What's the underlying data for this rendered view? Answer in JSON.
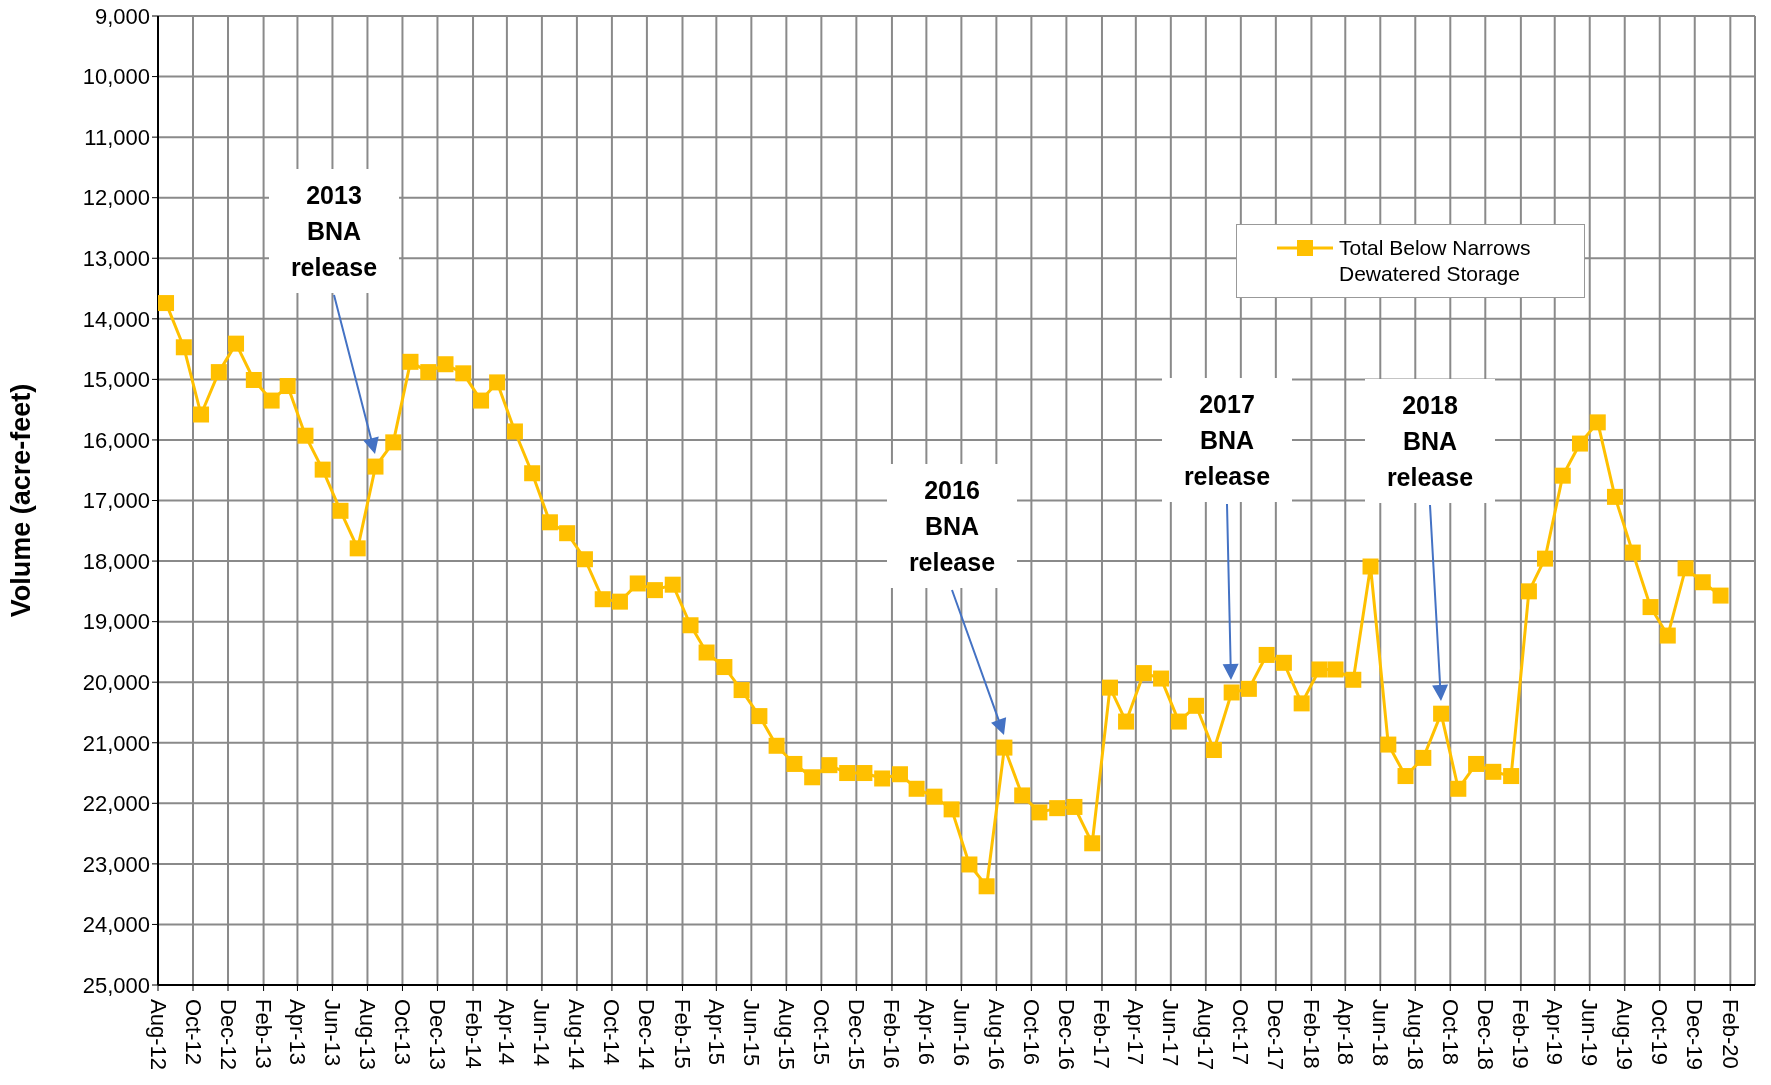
{
  "chart_data": {
    "type": "line",
    "ylabel": "Volume (acre-feet)",
    "x": [
      "2012-08-15",
      "2012-09-15",
      "2012-10-15",
      "2012-11-15",
      "2012-12-15",
      "2013-01-15",
      "2013-02-15",
      "2013-03-15",
      "2013-04-15",
      "2013-05-15",
      "2013-06-15",
      "2013-07-15",
      "2013-08-15",
      "2013-09-15",
      "2013-10-15",
      "2013-11-15",
      "2013-12-15",
      "2014-01-15",
      "2014-02-15",
      "2014-03-15",
      "2014-04-15",
      "2014-05-15",
      "2014-06-15",
      "2014-07-15",
      "2014-08-15",
      "2014-09-15",
      "2014-10-15",
      "2014-11-15",
      "2014-12-15",
      "2015-01-15",
      "2015-02-15",
      "2015-03-15",
      "2015-04-15",
      "2015-05-15",
      "2015-06-15",
      "2015-07-15",
      "2015-08-15",
      "2015-09-15",
      "2015-10-15",
      "2015-11-15",
      "2015-12-15",
      "2016-01-15",
      "2016-02-15",
      "2016-03-15",
      "2016-04-15",
      "2016-05-15",
      "2016-06-15",
      "2016-07-15",
      "2016-08-15",
      "2016-09-15",
      "2016-10-15",
      "2016-11-15",
      "2016-12-15",
      "2017-01-15",
      "2017-02-15",
      "2017-03-15",
      "2017-04-15",
      "2017-05-15",
      "2017-06-15",
      "2017-07-15",
      "2017-08-15",
      "2017-09-15",
      "2017-10-15",
      "2017-11-15",
      "2017-12-15",
      "2018-01-15",
      "2018-02-15",
      "2018-03-15",
      "2018-04-15",
      "2018-05-15",
      "2018-06-15",
      "2018-07-15",
      "2018-08-15",
      "2018-09-15",
      "2018-10-15",
      "2018-11-15",
      "2018-12-15",
      "2019-01-15",
      "2019-02-15",
      "2019-03-15",
      "2019-04-15",
      "2019-05-15",
      "2019-06-15",
      "2019-07-15",
      "2019-08-15",
      "2019-09-15",
      "2019-10-15",
      "2019-11-15",
      "2019-12-15",
      "2020-01-15"
    ],
    "series": [
      {
        "name": "Total Below Narrows Dewatered Storage",
        "color": "#ffc000",
        "values": [
          13740,
          14470,
          15580,
          14880,
          14410,
          15010,
          15350,
          15110,
          15930,
          16490,
          17170,
          17790,
          16440,
          16040,
          14710,
          14880,
          14750,
          14900,
          15350,
          15050,
          15860,
          16550,
          17360,
          17540,
          17970,
          18630,
          18670,
          18370,
          18480,
          18390,
          19060,
          19510,
          19750,
          20130,
          20560,
          21050,
          21350,
          21570,
          21370,
          21500,
          21500,
          21590,
          21520,
          21760,
          21890,
          22100,
          23010,
          23370,
          21080,
          21870,
          22150,
          22080,
          22060,
          22660,
          20090,
          20650,
          19850,
          19940,
          20650,
          20390,
          21120,
          20170,
          20110,
          19550,
          19680,
          20350,
          19790,
          19790,
          19960,
          18090,
          21030,
          21550,
          21250,
          20520,
          21760,
          21350,
          21480,
          21550,
          18500,
          17960,
          16590,
          16060,
          15710,
          16940,
          17860,
          18760,
          19230,
          18120,
          18350,
          18570
        ]
      }
    ],
    "xlim": [
      "2012-08-01",
      "2020-03-15"
    ],
    "xticks": [
      {
        "value": "2012-08-01",
        "label": "Aug-12"
      },
      {
        "value": "2012-10-01",
        "label": "Oct-12"
      },
      {
        "value": "2012-12-01",
        "label": "Dec-12"
      },
      {
        "value": "2013-02-01",
        "label": "Feb-13"
      },
      {
        "value": "2013-04-01",
        "label": "Apr-13"
      },
      {
        "value": "2013-06-01",
        "label": "Jun-13"
      },
      {
        "value": "2013-08-01",
        "label": "Aug-13"
      },
      {
        "value": "2013-10-01",
        "label": "Oct-13"
      },
      {
        "value": "2013-12-01",
        "label": "Dec-13"
      },
      {
        "value": "2014-02-01",
        "label": "Feb-14"
      },
      {
        "value": "2014-04-01",
        "label": "Apr-14"
      },
      {
        "value": "2014-06-01",
        "label": "Jun-14"
      },
      {
        "value": "2014-08-01",
        "label": "Aug-14"
      },
      {
        "value": "2014-10-01",
        "label": "Oct-14"
      },
      {
        "value": "2014-12-01",
        "label": "Dec-14"
      },
      {
        "value": "2015-02-01",
        "label": "Feb-15"
      },
      {
        "value": "2015-04-01",
        "label": "Apr-15"
      },
      {
        "value": "2015-06-01",
        "label": "Jun-15"
      },
      {
        "value": "2015-08-01",
        "label": "Aug-15"
      },
      {
        "value": "2015-10-01",
        "label": "Oct-15"
      },
      {
        "value": "2015-12-01",
        "label": "Dec-15"
      },
      {
        "value": "2016-02-01",
        "label": "Feb-16"
      },
      {
        "value": "2016-04-01",
        "label": "Apr-16"
      },
      {
        "value": "2016-06-01",
        "label": "Jun-16"
      },
      {
        "value": "2016-08-01",
        "label": "Aug-16"
      },
      {
        "value": "2016-10-01",
        "label": "Oct-16"
      },
      {
        "value": "2016-12-01",
        "label": "Dec-16"
      },
      {
        "value": "2017-02-01",
        "label": "Feb-17"
      },
      {
        "value": "2017-04-01",
        "label": "Apr-17"
      },
      {
        "value": "2017-06-01",
        "label": "Jun-17"
      },
      {
        "value": "2017-08-01",
        "label": "Aug-17"
      },
      {
        "value": "2017-10-01",
        "label": "Oct-17"
      },
      {
        "value": "2017-12-01",
        "label": "Dec-17"
      },
      {
        "value": "2018-02-01",
        "label": "Feb-18"
      },
      {
        "value": "2018-04-01",
        "label": "Apr-18"
      },
      {
        "value": "2018-06-01",
        "label": "Jun-18"
      },
      {
        "value": "2018-08-01",
        "label": "Aug-18"
      },
      {
        "value": "2018-10-01",
        "label": "Oct-18"
      },
      {
        "value": "2018-12-01",
        "label": "Dec-18"
      },
      {
        "value": "2019-02-01",
        "label": "Feb-19"
      },
      {
        "value": "2019-04-01",
        "label": "Apr-19"
      },
      {
        "value": "2019-06-01",
        "label": "Jun-19"
      },
      {
        "value": "2019-08-01",
        "label": "Aug-19"
      },
      {
        "value": "2019-10-01",
        "label": "Oct-19"
      },
      {
        "value": "2019-12-01",
        "label": "Dec-19"
      },
      {
        "value": "2020-02-01",
        "label": "Feb-20"
      }
    ],
    "ylim": [
      25000,
      9000
    ],
    "yticks": [
      {
        "value": 9000,
        "label": "9,000"
      },
      {
        "value": 10000,
        "label": "10,000"
      },
      {
        "value": 11000,
        "label": "11,000"
      },
      {
        "value": 12000,
        "label": "12,000"
      },
      {
        "value": 13000,
        "label": "13,000"
      },
      {
        "value": 14000,
        "label": "14,000"
      },
      {
        "value": 15000,
        "label": "15,000"
      },
      {
        "value": 16000,
        "label": "16,000"
      },
      {
        "value": 17000,
        "label": "17,000"
      },
      {
        "value": 18000,
        "label": "18,000"
      },
      {
        "value": 19000,
        "label": "19,000"
      },
      {
        "value": 20000,
        "label": "20,000"
      },
      {
        "value": 21000,
        "label": "21,000"
      },
      {
        "value": 22000,
        "label": "22,000"
      },
      {
        "value": 23000,
        "label": "23,000"
      },
      {
        "value": 24000,
        "label": "24,000"
      },
      {
        "value": 25000,
        "label": "25,000"
      }
    ],
    "annotations": [
      "2013 BNA release",
      "2016 BNA release",
      "2017 BNA release",
      "2018 BNA release"
    ],
    "grid": true,
    "legend": "top right",
    "marker": "square",
    "line_style": "solid"
  }
}
